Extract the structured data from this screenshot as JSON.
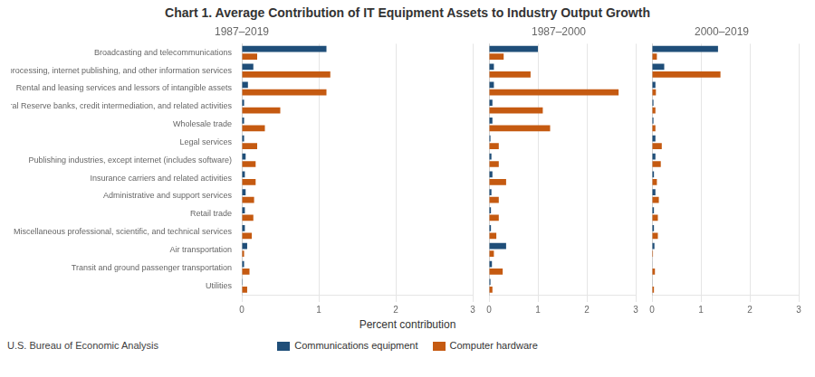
{
  "title": "Chart 1. Average Contribution of IT Equipment Assets to Industry Output Growth",
  "xlabel": "Percent contribution",
  "annotations": [
    "U.S. Bureau of Economic Analysis"
  ],
  "legend": "bottom",
  "chart_data": [
    {
      "type": "bar",
      "orientation": "horizontal",
      "title": "1987–2019",
      "categories": [
        "Broadcasting and telecommunications",
        "Data processing, internet publishing, and other information services",
        "Rental and leasing services and lessors of intangible assets",
        "Federal Reserve banks, credit intermediation, and related activities",
        "Wholesale trade",
        "Legal services",
        "Publishing industries, except internet (includes software)",
        "Insurance carriers and related activities",
        "Administrative and support services",
        "Retail trade",
        "Miscellaneous professional, scientific, and technical services",
        "Air transportation",
        "Transit and ground passenger transportation",
        "Utilities"
      ],
      "series": [
        {
          "name": "Communications equipment",
          "color": "#1f4e79",
          "values": [
            1.1,
            0.15,
            0.08,
            0.03,
            0.03,
            0.03,
            0.05,
            0.04,
            0.05,
            0.04,
            0.04,
            0.07,
            0.03,
            0.01
          ]
        },
        {
          "name": "Computer hardware",
          "color": "#c55a11",
          "values": [
            0.2,
            1.15,
            1.1,
            0.5,
            0.3,
            0.2,
            0.18,
            0.18,
            0.16,
            0.15,
            0.13,
            0.03,
            0.1,
            0.07
          ]
        }
      ],
      "xlim": [
        0,
        3
      ],
      "xticks": [
        0,
        1,
        2,
        3
      ],
      "grid": true
    },
    {
      "type": "bar",
      "orientation": "horizontal",
      "title": "1987–2000",
      "categories": [
        "Broadcasting and telecommunications",
        "Data processing, internet publishing, and other information services",
        "Rental and leasing services and lessors of intangible assets",
        "Federal Reserve banks, credit intermediation, and related activities",
        "Wholesale trade",
        "Legal services",
        "Publishing industries, except internet (includes software)",
        "Insurance carriers and related activities",
        "Administrative and support services",
        "Retail trade",
        "Miscellaneous professional, scientific, and technical services",
        "Air transportation",
        "Transit and ground passenger transportation",
        "Utilities"
      ],
      "series": [
        {
          "name": "Communications equipment",
          "color": "#1f4e79",
          "values": [
            1.0,
            0.1,
            0.1,
            0.07,
            0.07,
            0.03,
            0.05,
            0.07,
            0.05,
            0.04,
            0.04,
            0.35,
            0.06,
            0.03
          ]
        },
        {
          "name": "Computer hardware",
          "color": "#c55a11",
          "values": [
            0.3,
            0.85,
            2.65,
            1.1,
            1.25,
            0.2,
            0.2,
            0.35,
            0.2,
            0.2,
            0.15,
            0.1,
            0.28,
            0.07
          ]
        }
      ],
      "xlim": [
        0,
        3
      ],
      "xticks": [
        0,
        1,
        2,
        3
      ],
      "grid": true,
      "tick_labels": "x"
    },
    {
      "type": "bar",
      "orientation": "horizontal",
      "title": "2000–2019",
      "categories": [
        "Broadcasting and telecommunications",
        "Data processing, internet publishing, and other information services",
        "Rental and leasing services and lessors of intangible assets",
        "Federal Reserve banks, credit intermediation, and related activities",
        "Wholesale trade",
        "Legal services",
        "Publishing industries, except internet (includes software)",
        "Insurance carriers and related activities",
        "Administrative and support services",
        "Retail trade",
        "Miscellaneous professional, scientific, and technical services",
        "Air transportation",
        "Transit and ground passenger transportation",
        "Utilities"
      ],
      "series": [
        {
          "name": "Communications equipment",
          "color": "#1f4e79",
          "values": [
            1.35,
            0.25,
            0.07,
            0.03,
            0.03,
            0.07,
            0.07,
            0.04,
            0.07,
            0.04,
            0.04,
            0.05,
            0.01,
            0.01
          ]
        },
        {
          "name": "Computer hardware",
          "color": "#c55a11",
          "values": [
            0.1,
            1.4,
            0.08,
            0.07,
            0.07,
            0.2,
            0.18,
            0.1,
            0.14,
            0.12,
            0.12,
            0.02,
            0.06,
            0.04
          ]
        }
      ],
      "xlim": [
        0,
        3
      ],
      "xticks": [
        0,
        1,
        2,
        3
      ],
      "grid": true,
      "tick_labels": "x"
    }
  ]
}
